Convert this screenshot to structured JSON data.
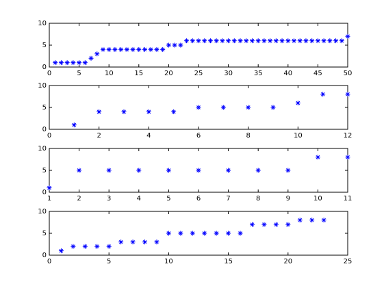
{
  "chart_data": [
    {
      "type": "scatter",
      "marker": "*",
      "color": "#0000ff",
      "x": [
        1,
        2,
        3,
        4,
        5,
        6,
        7,
        8,
        9,
        10,
        11,
        12,
        13,
        14,
        15,
        16,
        17,
        18,
        19,
        20,
        21,
        22,
        23,
        24,
        25,
        26,
        27,
        28,
        29,
        30,
        31,
        32,
        33,
        34,
        35,
        36,
        37,
        38,
        39,
        40,
        41,
        42,
        43,
        44,
        45,
        46,
        47,
        48,
        49,
        50
      ],
      "values": [
        1,
        1,
        1,
        1,
        1,
        1,
        2,
        3,
        4,
        4,
        4,
        4,
        4,
        4,
        4,
        4,
        4,
        4,
        4,
        5,
        5,
        5,
        6,
        6,
        6,
        6,
        6,
        6,
        6,
        6,
        6,
        6,
        6,
        6,
        6,
        6,
        6,
        6,
        6,
        6,
        6,
        6,
        6,
        6,
        6,
        6,
        6,
        6,
        6,
        7
      ],
      "xlim": [
        0,
        50
      ],
      "ylim": [
        0,
        10
      ],
      "xticks": [
        0,
        5,
        10,
        15,
        20,
        25,
        30,
        35,
        40,
        45,
        50
      ],
      "yticks": [
        0,
        5,
        10
      ]
    },
    {
      "type": "scatter",
      "marker": "*",
      "color": "#0000ff",
      "x": [
        1,
        2,
        3,
        4,
        5,
        6,
        7,
        8,
        9,
        10,
        11,
        12
      ],
      "values": [
        1,
        4,
        4,
        4,
        4,
        5,
        5,
        5,
        5,
        6,
        8,
        8
      ],
      "xlim": [
        0,
        12
      ],
      "ylim": [
        0,
        10
      ],
      "xticks": [
        0,
        2,
        4,
        6,
        8,
        10,
        12
      ],
      "yticks": [
        0,
        5,
        10
      ]
    },
    {
      "type": "scatter",
      "marker": "*",
      "color": "#0000ff",
      "x": [
        1,
        2,
        3,
        4,
        5,
        6,
        7,
        8,
        9,
        10,
        11
      ],
      "values": [
        1,
        5,
        5,
        5,
        5,
        5,
        5,
        5,
        5,
        8,
        8
      ],
      "xlim": [
        1,
        11
      ],
      "ylim": [
        0,
        10
      ],
      "xticks": [
        1,
        2,
        3,
        4,
        5,
        6,
        7,
        8,
        9,
        10,
        11
      ],
      "yticks": [
        0,
        5,
        10
      ]
    },
    {
      "type": "scatter",
      "marker": "*",
      "color": "#0000ff",
      "x": [
        1,
        2,
        3,
        4,
        5,
        6,
        7,
        8,
        9,
        10,
        11,
        12,
        13,
        14,
        15,
        16,
        17,
        18,
        19,
        20,
        21,
        22,
        23
      ],
      "values": [
        1,
        2,
        2,
        2,
        2,
        3,
        3,
        3,
        3,
        5,
        5,
        5,
        5,
        5,
        5,
        5,
        7,
        7,
        7,
        7,
        8,
        8,
        8
      ],
      "xlim": [
        0,
        25
      ],
      "ylim": [
        0,
        10
      ],
      "xticks": [
        0,
        5,
        10,
        15,
        20,
        25
      ],
      "yticks": [
        0,
        5,
        10
      ]
    }
  ]
}
